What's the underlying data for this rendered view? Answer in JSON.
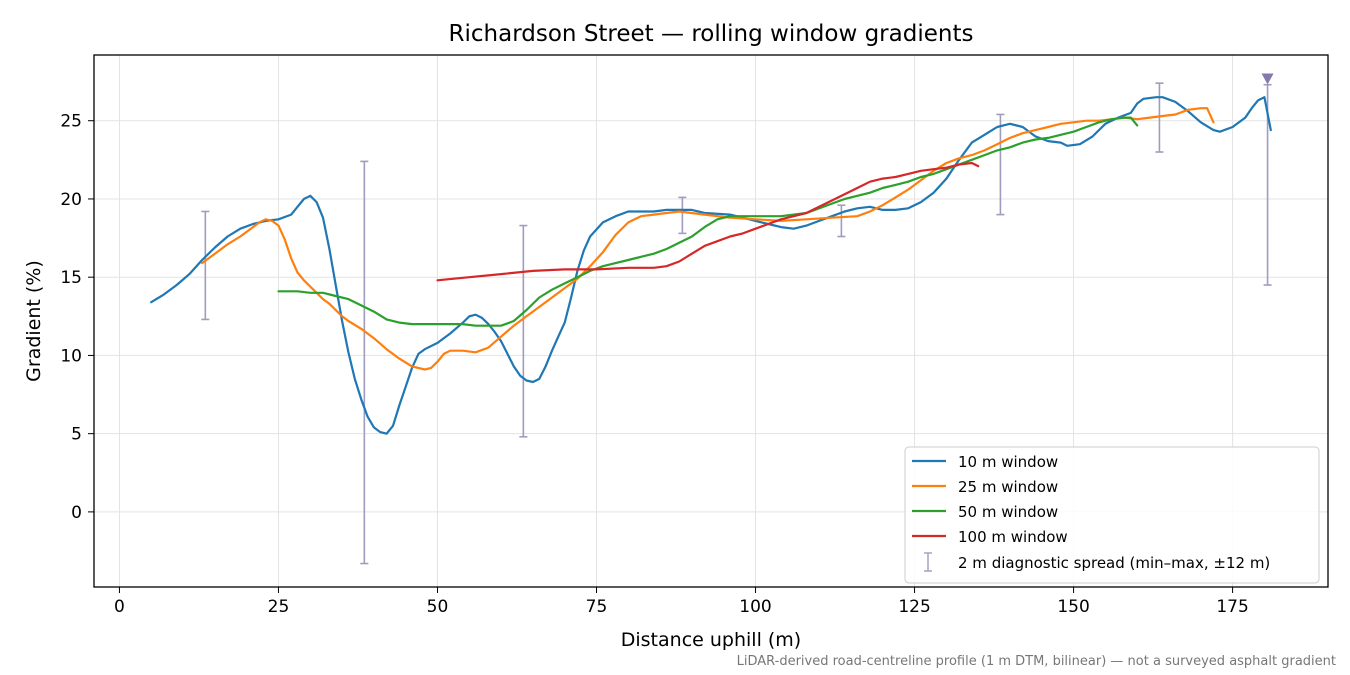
{
  "chart_data": {
    "type": "line",
    "title": "Richardson Street — rolling window gradients",
    "xlabel": "Distance uphill (m)",
    "ylabel": "Gradient (%)",
    "xlim": [
      -4,
      190
    ],
    "ylim": [
      -4.8,
      29.2
    ],
    "xticks": [
      0,
      25,
      50,
      75,
      100,
      125,
      150,
      175
    ],
    "yticks": [
      0,
      5,
      10,
      15,
      20,
      25
    ],
    "grid": true,
    "legend_position": "lower-right",
    "caption": "LiDAR-derived road-centreline profile (1 m DTM, bilinear) — not a surveyed asphalt gradient",
    "series": [
      {
        "name": "10 m window",
        "color": "#1f77b4",
        "points": [
          [
            5,
            13.4
          ],
          [
            7,
            13.9
          ],
          [
            9,
            14.5
          ],
          [
            11,
            15.2
          ],
          [
            13,
            16.1
          ],
          [
            15,
            16.9
          ],
          [
            17,
            17.6
          ],
          [
            19,
            18.1
          ],
          [
            21,
            18.4
          ],
          [
            23,
            18.6
          ],
          [
            25,
            18.7
          ],
          [
            27,
            19.0
          ],
          [
            28,
            19.5
          ],
          [
            29,
            20.0
          ],
          [
            30,
            20.2
          ],
          [
            31,
            19.8
          ],
          [
            32,
            18.8
          ],
          [
            33,
            16.8
          ],
          [
            34,
            14.5
          ],
          [
            35,
            12.2
          ],
          [
            36,
            10.2
          ],
          [
            37,
            8.5
          ],
          [
            38,
            7.2
          ],
          [
            39,
            6.1
          ],
          [
            40,
            5.4
          ],
          [
            41,
            5.1
          ],
          [
            42,
            5.0
          ],
          [
            43,
            5.5
          ],
          [
            44,
            6.8
          ],
          [
            45,
            8.0
          ],
          [
            46,
            9.2
          ],
          [
            47,
            10.1
          ],
          [
            48,
            10.4
          ],
          [
            50,
            10.8
          ],
          [
            52,
            11.4
          ],
          [
            54,
            12.1
          ],
          [
            55,
            12.5
          ],
          [
            56,
            12.6
          ],
          [
            57,
            12.4
          ],
          [
            58,
            12.0
          ],
          [
            59,
            11.5
          ],
          [
            60,
            10.9
          ],
          [
            61,
            10.1
          ],
          [
            62,
            9.3
          ],
          [
            63,
            8.7
          ],
          [
            64,
            8.4
          ],
          [
            65,
            8.3
          ],
          [
            66,
            8.5
          ],
          [
            67,
            9.3
          ],
          [
            68,
            10.3
          ],
          [
            69,
            11.2
          ],
          [
            70,
            12.1
          ],
          [
            71,
            13.7
          ],
          [
            72,
            15.4
          ],
          [
            73,
            16.7
          ],
          [
            74,
            17.6
          ],
          [
            76,
            18.5
          ],
          [
            78,
            18.9
          ],
          [
            80,
            19.2
          ],
          [
            84,
            19.2
          ],
          [
            86,
            19.3
          ],
          [
            88,
            19.3
          ],
          [
            90,
            19.3
          ],
          [
            92,
            19.1
          ],
          [
            96,
            19.0
          ],
          [
            98,
            18.8
          ],
          [
            100,
            18.6
          ],
          [
            102,
            18.4
          ],
          [
            104,
            18.2
          ],
          [
            106,
            18.1
          ],
          [
            108,
            18.3
          ],
          [
            110,
            18.6
          ],
          [
            112,
            18.9
          ],
          [
            114,
            19.2
          ],
          [
            116,
            19.4
          ],
          [
            118,
            19.5
          ],
          [
            120,
            19.3
          ],
          [
            122,
            19.3
          ],
          [
            124,
            19.4
          ],
          [
            126,
            19.8
          ],
          [
            128,
            20.4
          ],
          [
            130,
            21.3
          ],
          [
            132,
            22.5
          ],
          [
            134,
            23.6
          ],
          [
            136,
            24.1
          ],
          [
            138,
            24.6
          ],
          [
            140,
            24.8
          ],
          [
            142,
            24.6
          ],
          [
            144,
            24.0
          ],
          [
            146,
            23.7
          ],
          [
            148,
            23.6
          ],
          [
            149,
            23.4
          ],
          [
            151,
            23.5
          ],
          [
            153,
            24.0
          ],
          [
            155,
            24.8
          ],
          [
            157,
            25.2
          ],
          [
            159,
            25.5
          ],
          [
            160,
            26.1
          ],
          [
            161,
            26.4
          ],
          [
            163,
            26.5
          ],
          [
            164,
            26.5
          ],
          [
            166,
            26.2
          ],
          [
            168,
            25.6
          ],
          [
            170,
            24.9
          ],
          [
            172,
            24.4
          ],
          [
            173,
            24.3
          ],
          [
            175,
            24.6
          ],
          [
            177,
            25.2
          ],
          [
            178,
            25.8
          ],
          [
            179,
            26.3
          ],
          [
            180,
            26.5
          ],
          [
            181,
            24.4
          ]
        ]
      },
      {
        "name": "25 m window",
        "color": "#ff7f0e",
        "points": [
          [
            13,
            15.9
          ],
          [
            15,
            16.5
          ],
          [
            17,
            17.1
          ],
          [
            19,
            17.6
          ],
          [
            21,
            18.2
          ],
          [
            22,
            18.5
          ],
          [
            23,
            18.7
          ],
          [
            24,
            18.6
          ],
          [
            25,
            18.3
          ],
          [
            26,
            17.4
          ],
          [
            27,
            16.2
          ],
          [
            28,
            15.3
          ],
          [
            29,
            14.8
          ],
          [
            30,
            14.4
          ],
          [
            31,
            14.0
          ],
          [
            32,
            13.6
          ],
          [
            33,
            13.3
          ],
          [
            34,
            12.9
          ],
          [
            35,
            12.5
          ],
          [
            36,
            12.2
          ],
          [
            38,
            11.7
          ],
          [
            40,
            11.1
          ],
          [
            42,
            10.4
          ],
          [
            44,
            9.8
          ],
          [
            46,
            9.3
          ],
          [
            48,
            9.1
          ],
          [
            49,
            9.2
          ],
          [
            50,
            9.6
          ],
          [
            51,
            10.1
          ],
          [
            52,
            10.3
          ],
          [
            54,
            10.3
          ],
          [
            56,
            10.2
          ],
          [
            58,
            10.5
          ],
          [
            60,
            11.2
          ],
          [
            62,
            11.9
          ],
          [
            64,
            12.5
          ],
          [
            66,
            13.1
          ],
          [
            68,
            13.7
          ],
          [
            70,
            14.3
          ],
          [
            72,
            14.9
          ],
          [
            74,
            15.7
          ],
          [
            76,
            16.6
          ],
          [
            78,
            17.7
          ],
          [
            80,
            18.5
          ],
          [
            82,
            18.9
          ],
          [
            84,
            19.0
          ],
          [
            86,
            19.1
          ],
          [
            88,
            19.2
          ],
          [
            92,
            19.0
          ],
          [
            96,
            18.8
          ],
          [
            100,
            18.7
          ],
          [
            104,
            18.6
          ],
          [
            108,
            18.7
          ],
          [
            112,
            18.8
          ],
          [
            116,
            18.9
          ],
          [
            118,
            19.2
          ],
          [
            120,
            19.6
          ],
          [
            122,
            20.1
          ],
          [
            124,
            20.6
          ],
          [
            126,
            21.2
          ],
          [
            128,
            21.8
          ],
          [
            130,
            22.3
          ],
          [
            132,
            22.6
          ],
          [
            134,
            22.8
          ],
          [
            136,
            23.1
          ],
          [
            138,
            23.5
          ],
          [
            140,
            23.9
          ],
          [
            142,
            24.2
          ],
          [
            144,
            24.4
          ],
          [
            146,
            24.6
          ],
          [
            148,
            24.8
          ],
          [
            150,
            24.9
          ],
          [
            152,
            25.0
          ],
          [
            154,
            25.0
          ],
          [
            156,
            25.1
          ],
          [
            158,
            25.2
          ],
          [
            160,
            25.1
          ],
          [
            162,
            25.2
          ],
          [
            164,
            25.3
          ],
          [
            166,
            25.4
          ],
          [
            168,
            25.7
          ],
          [
            170,
            25.8
          ],
          [
            171,
            25.8
          ],
          [
            172,
            24.9
          ]
        ]
      },
      {
        "name": "50 m window",
        "color": "#2ca02c",
        "points": [
          [
            25,
            14.1
          ],
          [
            28,
            14.1
          ],
          [
            30,
            14.0
          ],
          [
            32,
            14.0
          ],
          [
            34,
            13.8
          ],
          [
            36,
            13.6
          ],
          [
            38,
            13.2
          ],
          [
            40,
            12.8
          ],
          [
            42,
            12.3
          ],
          [
            44,
            12.1
          ],
          [
            46,
            12.0
          ],
          [
            48,
            12.0
          ],
          [
            50,
            12.0
          ],
          [
            52,
            12.0
          ],
          [
            54,
            12.0
          ],
          [
            56,
            11.9
          ],
          [
            58,
            11.9
          ],
          [
            60,
            11.9
          ],
          [
            62,
            12.2
          ],
          [
            64,
            12.9
          ],
          [
            66,
            13.7
          ],
          [
            68,
            14.2
          ],
          [
            70,
            14.6
          ],
          [
            72,
            15.0
          ],
          [
            74,
            15.4
          ],
          [
            76,
            15.7
          ],
          [
            78,
            15.9
          ],
          [
            80,
            16.1
          ],
          [
            82,
            16.3
          ],
          [
            84,
            16.5
          ],
          [
            86,
            16.8
          ],
          [
            88,
            17.2
          ],
          [
            90,
            17.6
          ],
          [
            92,
            18.2
          ],
          [
            94,
            18.7
          ],
          [
            96,
            18.9
          ],
          [
            98,
            18.9
          ],
          [
            102,
            18.9
          ],
          [
            104,
            18.9
          ],
          [
            106,
            19.0
          ],
          [
            108,
            19.1
          ],
          [
            110,
            19.4
          ],
          [
            112,
            19.7
          ],
          [
            114,
            20.0
          ],
          [
            116,
            20.2
          ],
          [
            118,
            20.4
          ],
          [
            120,
            20.7
          ],
          [
            122,
            20.9
          ],
          [
            124,
            21.1
          ],
          [
            126,
            21.4
          ],
          [
            128,
            21.6
          ],
          [
            130,
            21.9
          ],
          [
            132,
            22.2
          ],
          [
            134,
            22.5
          ],
          [
            136,
            22.8
          ],
          [
            138,
            23.1
          ],
          [
            140,
            23.3
          ],
          [
            142,
            23.6
          ],
          [
            144,
            23.8
          ],
          [
            146,
            23.9
          ],
          [
            148,
            24.1
          ],
          [
            150,
            24.3
          ],
          [
            152,
            24.6
          ],
          [
            154,
            24.9
          ],
          [
            156,
            25.1
          ],
          [
            158,
            25.2
          ],
          [
            159,
            25.2
          ],
          [
            160,
            24.7
          ]
        ]
      },
      {
        "name": "100 m window",
        "color": "#d62728",
        "points": [
          [
            50,
            14.8
          ],
          [
            55,
            15.0
          ],
          [
            60,
            15.2
          ],
          [
            65,
            15.4
          ],
          [
            70,
            15.5
          ],
          [
            75,
            15.5
          ],
          [
            80,
            15.6
          ],
          [
            84,
            15.6
          ],
          [
            86,
            15.7
          ],
          [
            88,
            16.0
          ],
          [
            90,
            16.5
          ],
          [
            92,
            17.0
          ],
          [
            94,
            17.3
          ],
          [
            96,
            17.6
          ],
          [
            98,
            17.8
          ],
          [
            100,
            18.1
          ],
          [
            102,
            18.4
          ],
          [
            104,
            18.7
          ],
          [
            106,
            18.9
          ],
          [
            108,
            19.1
          ],
          [
            110,
            19.5
          ],
          [
            112,
            19.9
          ],
          [
            114,
            20.3
          ],
          [
            116,
            20.7
          ],
          [
            118,
            21.1
          ],
          [
            120,
            21.3
          ],
          [
            122,
            21.4
          ],
          [
            124,
            21.6
          ],
          [
            126,
            21.8
          ],
          [
            128,
            21.9
          ],
          [
            130,
            22.0
          ],
          [
            132,
            22.2
          ],
          [
            134,
            22.3
          ],
          [
            135,
            22.1
          ]
        ]
      }
    ],
    "errorbars": {
      "name": "2 m diagnostic spread (min–max, ±12 m)",
      "color": "#a09cc0",
      "bars": [
        [
          13.5,
          12.3,
          19.2
        ],
        [
          38.5,
          -3.3,
          22.4
        ],
        [
          63.5,
          4.8,
          18.3
        ],
        [
          88.5,
          17.8,
          20.1
        ],
        [
          113.5,
          17.6,
          19.6
        ],
        [
          138.5,
          19.0,
          25.4
        ],
        [
          163.5,
          23.0,
          27.4
        ],
        [
          180.5,
          14.5,
          27.3
        ]
      ],
      "marker": {
        "x": 180.5,
        "y": 27.7,
        "color": "#8579ad"
      }
    }
  }
}
